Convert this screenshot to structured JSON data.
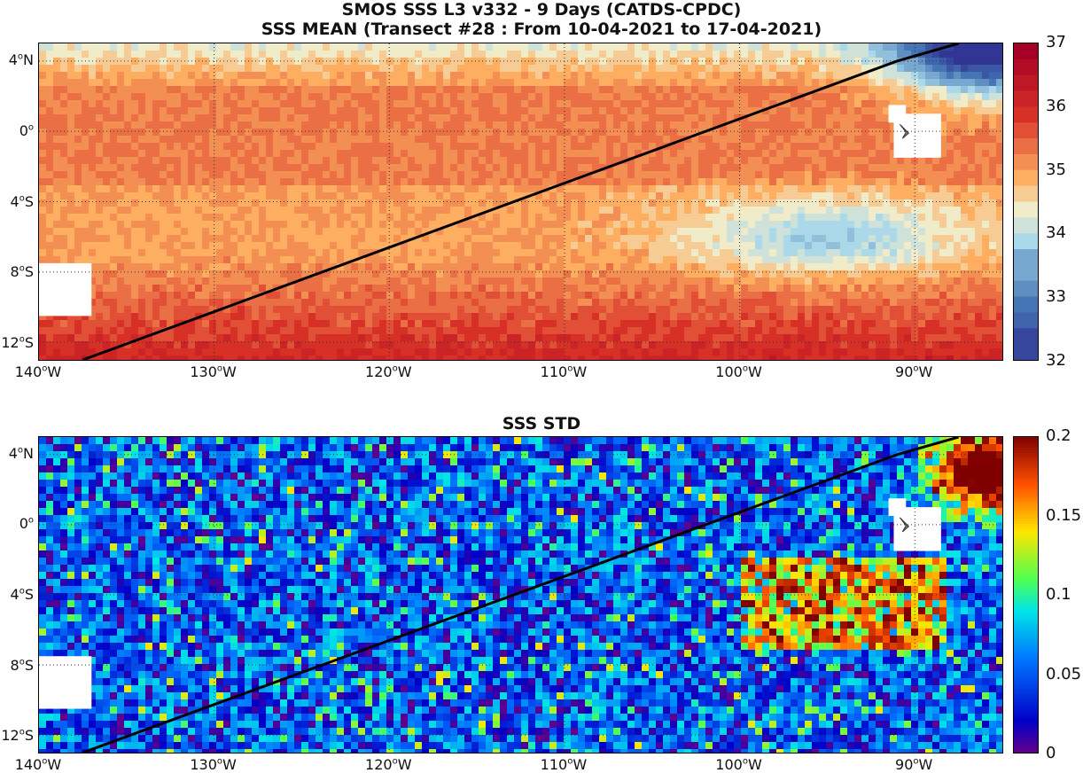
{
  "titles": {
    "line1": "SMOS SSS L3 v332 - 9 Days (CATDS-CPDC)",
    "line2": "SSS MEAN (Transect #28 : From 10-04-2021 to 17-04-2021)",
    "panel2": "SSS STD"
  },
  "lat_ticks": [
    {
      "deg": "4",
      "hem": "N",
      "value": 4
    },
    {
      "deg": "0",
      "hem": "",
      "value": 0
    },
    {
      "deg": "4",
      "hem": "S",
      "value": -4
    },
    {
      "deg": "8",
      "hem": "S",
      "value": -8
    },
    {
      "deg": "12",
      "hem": "S",
      "value": -12
    }
  ],
  "lon_ticks": [
    {
      "deg": "140",
      "hem": "W",
      "value": -140
    },
    {
      "deg": "130",
      "hem": "W",
      "value": -130
    },
    {
      "deg": "120",
      "hem": "W",
      "value": -120
    },
    {
      "deg": "110",
      "hem": "W",
      "value": -110
    },
    {
      "deg": "100",
      "hem": "W",
      "value": -100
    },
    {
      "deg": "90",
      "hem": "W",
      "value": -90
    }
  ],
  "map_extent": {
    "lon_min": -140,
    "lon_max": -85,
    "lat_min": -13,
    "lat_max": 5
  },
  "transect": [
    [
      -137.5,
      -13
    ],
    [
      -91,
      4
    ],
    [
      -87.5,
      5
    ]
  ],
  "mean_colorbar": {
    "ticks": [
      "37",
      "36",
      "35",
      "34",
      "33",
      "32"
    ],
    "min": 32,
    "max": 37,
    "colormap": "blue-to-red diverging (RdYlBu reversed)"
  },
  "std_colorbar": {
    "ticks": [
      "0.2",
      "0.15",
      "0.1",
      "0.05",
      "0"
    ],
    "min": 0,
    "max": 0.2,
    "colormap": "jet"
  },
  "colors": {
    "land": "#808080",
    "missing": "#ffffff",
    "transect": "#000000"
  }
}
